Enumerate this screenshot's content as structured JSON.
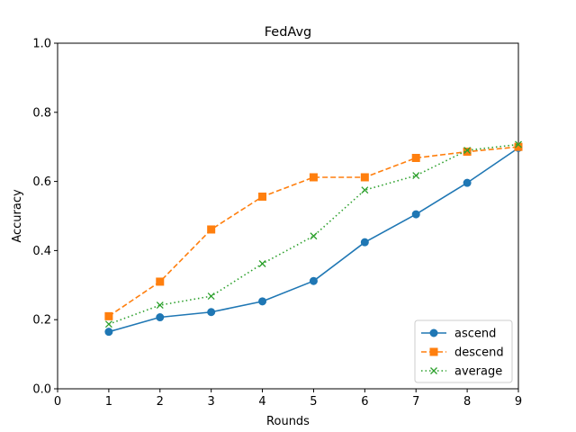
{
  "chart_data": {
    "type": "line",
    "title": "FedAvg",
    "xlabel": "Rounds",
    "ylabel": "Accuracy",
    "xlim": [
      0,
      9
    ],
    "ylim": [
      0.0,
      1.0
    ],
    "xticks": [
      "0",
      "1",
      "2",
      "3",
      "4",
      "5",
      "6",
      "7",
      "8",
      "9"
    ],
    "yticks": [
      "0.0",
      "0.2",
      "0.4",
      "0.6",
      "0.8",
      "1.0"
    ],
    "grid": false,
    "legend_position": "lower-right",
    "x": [
      1,
      2,
      3,
      4,
      5,
      6,
      7,
      8,
      9
    ],
    "series": [
      {
        "name": "ascend",
        "color": "#1f77b4",
        "marker": "circle",
        "linestyle": "solid",
        "values": [
          0.165,
          0.207,
          0.222,
          0.253,
          0.312,
          0.424,
          0.505,
          0.596,
          0.697
        ]
      },
      {
        "name": "descend",
        "color": "#ff7f0e",
        "marker": "square",
        "linestyle": "dashed",
        "values": [
          0.21,
          0.31,
          0.461,
          0.556,
          0.612,
          0.612,
          0.668,
          0.686,
          0.7
        ]
      },
      {
        "name": "average",
        "color": "#2ca02c",
        "marker": "x",
        "linestyle": "dotted",
        "values": [
          0.187,
          0.242,
          0.268,
          0.362,
          0.442,
          0.575,
          0.617,
          0.69,
          0.707
        ]
      }
    ]
  }
}
